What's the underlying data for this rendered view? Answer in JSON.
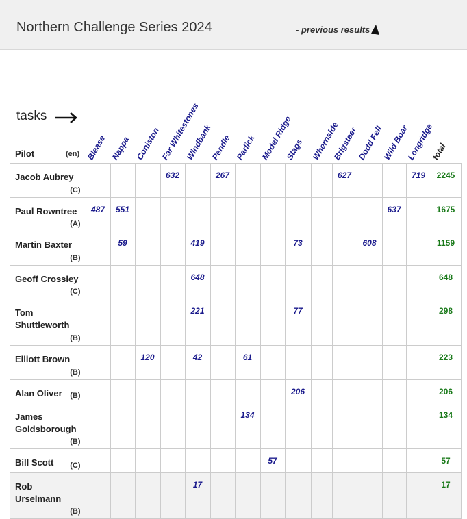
{
  "header": {
    "title": "Northern Challenge Series 2024",
    "previous_link": "- previous results"
  },
  "tasks_label": "tasks",
  "pilot_header": "Pilot",
  "en_header": "(en)",
  "tasks": [
    "Blease",
    "Nappa",
    "Coniston",
    "Far Whitestones",
    "Windbank",
    "Pendle",
    "Parlick",
    "Model Ridge",
    "Stags",
    "Whernside",
    "Brigsteer",
    "Dodd Fell",
    "Wild Boar",
    "Longridge"
  ],
  "total_label": "total",
  "pilots": [
    {
      "name": "Jacob Aubrey",
      "class": "(C)",
      "scores": [
        "",
        "",
        "",
        "632",
        "",
        "267",
        "",
        "",
        "",
        "",
        "627",
        "",
        "",
        "719"
      ],
      "total": "2245"
    },
    {
      "name": "Paul Rowntree",
      "class": "(A)",
      "scores": [
        "487",
        "551",
        "",
        "",
        "",
        "",
        "",
        "",
        "",
        "",
        "",
        "",
        "637",
        ""
      ],
      "total": "1675"
    },
    {
      "name": "Martin Baxter",
      "class": "(B)",
      "scores": [
        "",
        "59",
        "",
        "",
        "419",
        "",
        "",
        "",
        "73",
        "",
        "",
        "608",
        "",
        ""
      ],
      "total": "1159"
    },
    {
      "name": "Geoff Crossley",
      "class": "(C)",
      "scores": [
        "",
        "",
        "",
        "",
        "648",
        "",
        "",
        "",
        "",
        "",
        "",
        "",
        "",
        ""
      ],
      "total": "648"
    },
    {
      "name": "Tom Shuttleworth",
      "class": "(B)",
      "scores": [
        "",
        "",
        "",
        "",
        "221",
        "",
        "",
        "",
        "77",
        "",
        "",
        "",
        "",
        ""
      ],
      "total": "298"
    },
    {
      "name": "Elliott Brown",
      "class": "(B)",
      "scores": [
        "",
        "",
        "120",
        "",
        "42",
        "",
        "61",
        "",
        "",
        "",
        "",
        "",
        "",
        ""
      ],
      "total": "223"
    },
    {
      "name": "Alan Oliver",
      "class": "(B)",
      "scores": [
        "",
        "",
        "",
        "",
        "",
        "",
        "",
        "",
        "206",
        "",
        "",
        "",
        "",
        ""
      ],
      "total": "206"
    },
    {
      "name": "James Goldsborough",
      "class": "(B)",
      "scores": [
        "",
        "",
        "",
        "",
        "",
        "",
        "134",
        "",
        "",
        "",
        "",
        "",
        "",
        ""
      ],
      "total": "134"
    },
    {
      "name": "Bill Scott",
      "class": "(C)",
      "scores": [
        "",
        "",
        "",
        "",
        "",
        "",
        "",
        "57",
        "",
        "",
        "",
        "",
        "",
        ""
      ],
      "total": "57"
    },
    {
      "name": "Rob Urselmann",
      "class": "(B)",
      "scores": [
        "",
        "",
        "",
        "",
        "17",
        "",
        "",
        "",
        "",
        "",
        "",
        "",
        "",
        ""
      ],
      "total": "17"
    }
  ]
}
